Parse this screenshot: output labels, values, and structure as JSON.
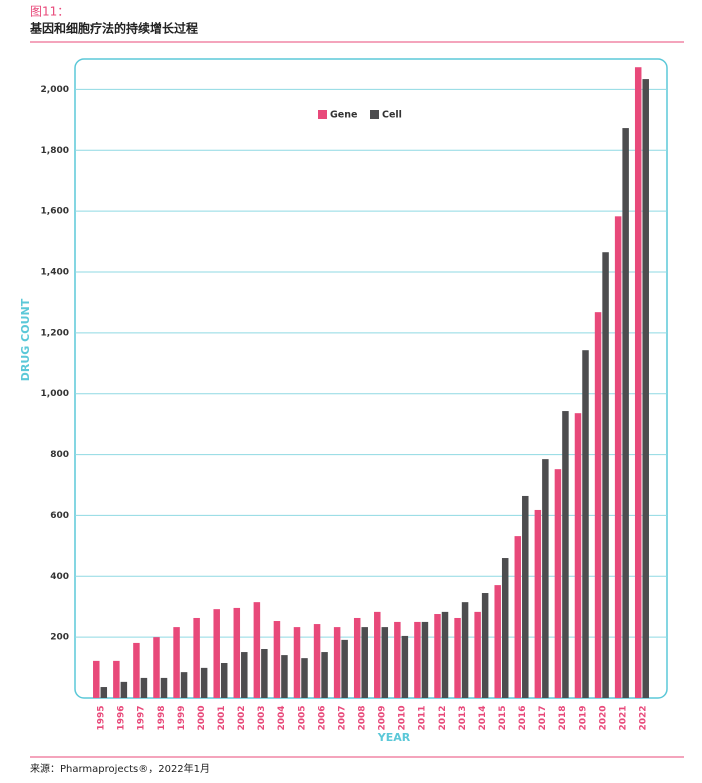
{
  "chart_data": {
    "type": "bar",
    "figure_label": "图11：",
    "title": "基因和细胞疗法的持续增长过程",
    "source": "来源：Pharmaprojects®，2022年1月",
    "y_label": "DRUG COUNT",
    "x_label": "YEAR",
    "categories": [
      "1995",
      "1996",
      "1997",
      "1998",
      "1999",
      "2000",
      "2001",
      "2002",
      "2003",
      "2004",
      "2005",
      "2006",
      "2007",
      "2008",
      "2009",
      "2010",
      "2011",
      "2012",
      "2013",
      "2014",
      "2015",
      "2016",
      "2017",
      "2018",
      "2019",
      "2020",
      "2021",
      "2022"
    ],
    "series": [
      {
        "name": "Gene",
        "color": "#e8497a",
        "values": [
          122,
          122,
          181,
          200,
          233,
          263,
          292,
          296,
          315,
          253,
          233,
          243,
          233,
          263,
          283,
          250,
          250,
          276,
          263,
          283,
          371,
          532,
          618,
          752,
          936,
          1268,
          1583,
          2073
        ]
      },
      {
        "name": "Cell",
        "color": "#4d4d4f",
        "values": [
          36,
          53,
          66,
          66,
          85,
          99,
          115,
          151,
          161,
          141,
          131,
          151,
          191,
          233,
          233,
          204,
          250,
          283,
          315,
          345,
          460,
          664,
          785,
          943,
          1143,
          1465,
          1873,
          2034
        ]
      }
    ],
    "ylim": [
      0,
      2100
    ],
    "yticks": [
      {
        "value": 200,
        "label": "200"
      },
      {
        "value": 400,
        "label": "400"
      },
      {
        "value": 600,
        "label": "600"
      },
      {
        "value": 800,
        "label": "800"
      },
      {
        "value": 1000,
        "label": "1,000"
      },
      {
        "value": 1200,
        "label": "1,200"
      },
      {
        "value": 1400,
        "label": "1,400"
      },
      {
        "value": 1600,
        "label": "1,600"
      },
      {
        "value": 1800,
        "label": "1,800"
      },
      {
        "value": 2000,
        "label": "2,000"
      }
    ],
    "grid": true
  }
}
